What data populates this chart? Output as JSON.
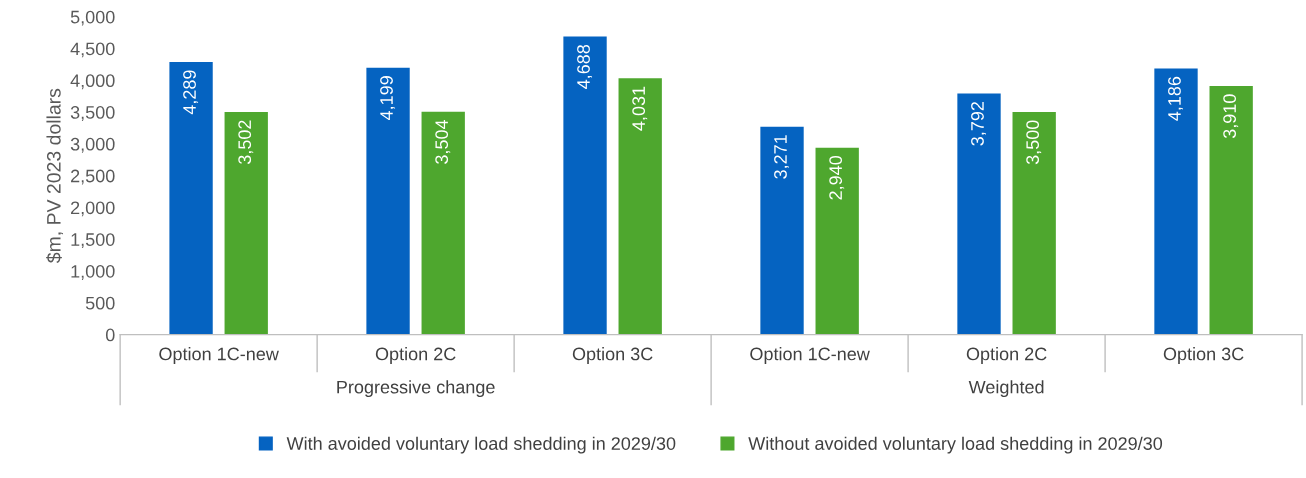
{
  "chart_data": {
    "type": "bar",
    "ylabel": "$m, PV 2023 dollars",
    "categories": [
      "Option 1C-new",
      "Option 2C",
      "Option 3C",
      "Option 1C-new",
      "Option 2C",
      "Option 3C"
    ],
    "annotations": [
      "Progressive change",
      "Weighted"
    ],
    "series": [
      {
        "name": "With avoided voluntary load shedding in 2029/30",
        "color": "#0563c1",
        "values": [
          4289,
          4199,
          4688,
          3271,
          3792,
          4186
        ]
      },
      {
        "name": "Without avoided voluntary load shedding in 2029/30",
        "color": "#4ea72e",
        "values": [
          3502,
          3504,
          4031,
          2940,
          3500,
          3910
        ]
      }
    ],
    "value_labels": [
      [
        "4,289",
        "4,199",
        "4,688",
        "3,271",
        "3,792",
        "4,186"
      ],
      [
        "3,502",
        "3,504",
        "4,031",
        "2,940",
        "3,500",
        "3,910"
      ]
    ],
    "ylim": [
      0,
      5000
    ],
    "yticks": [
      0,
      500,
      {
        "value": 1000,
        "label": "1,000"
      },
      {
        "value": 1500,
        "label": "1,500"
      },
      {
        "value": 2000,
        "label": "2,000"
      },
      {
        "value": 2500,
        "label": "2,500"
      },
      {
        "value": 3000,
        "label": "3,000"
      },
      {
        "value": 3500,
        "label": "3,500"
      },
      {
        "value": 4000,
        "label": "4,000"
      },
      {
        "value": 4500,
        "label": "4,500"
      },
      {
        "value": 5000,
        "label": "5,000"
      }
    ],
    "grid": false,
    "legend": "bottom"
  }
}
